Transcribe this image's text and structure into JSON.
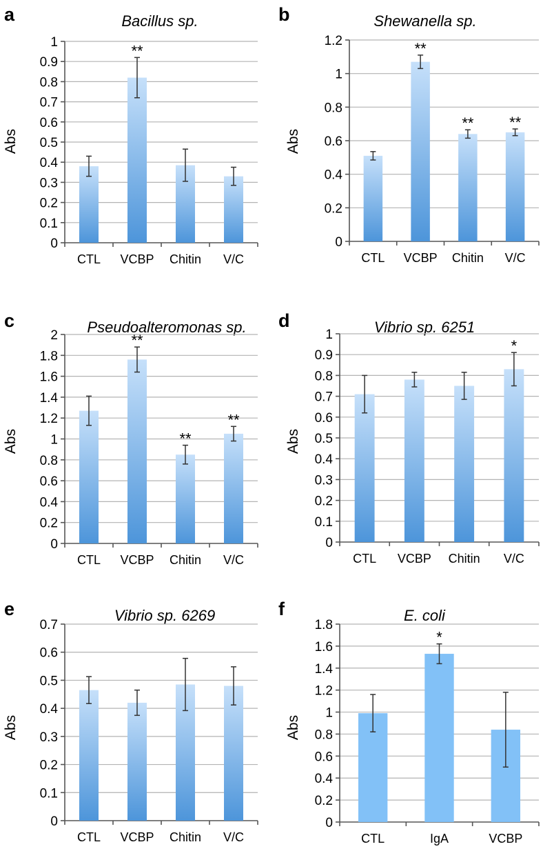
{
  "chart_data": [
    {
      "panel": "a",
      "type": "bar",
      "title": "Bacillus sp.",
      "ylabel": "Abs",
      "xlabel": "",
      "ylim": [
        0,
        1
      ],
      "ystep": 0.1,
      "yticks": [
        "0",
        "0.1",
        "0.2",
        "0.3",
        "0.4",
        "0.5",
        "0.6",
        "0.7",
        "0.8",
        "0.9",
        "1"
      ],
      "categories": [
        "CTL",
        "VCBP",
        "Chitin",
        "V/C"
      ],
      "values": [
        0.38,
        0.82,
        0.385,
        0.33
      ],
      "errors": [
        0.05,
        0.1,
        0.08,
        0.045
      ],
      "significance": [
        "",
        "**",
        "",
        ""
      ],
      "bar_style": "gradient"
    },
    {
      "panel": "b",
      "type": "bar",
      "title": "Shewanella sp.",
      "ylabel": "Abs",
      "xlabel": "",
      "ylim": [
        0,
        1.2
      ],
      "ystep": 0.2,
      "yticks": [
        "0",
        "0.2",
        "0.4",
        "0.6",
        "0.8",
        "1",
        "1.2"
      ],
      "categories": [
        "CTL",
        "VCBP",
        "Chitin",
        "V/C"
      ],
      "values": [
        0.51,
        1.07,
        0.64,
        0.65
      ],
      "errors": [
        0.025,
        0.04,
        0.025,
        0.02
      ],
      "significance": [
        "",
        "**",
        "**",
        "**"
      ],
      "bar_style": "gradient"
    },
    {
      "panel": "c",
      "type": "bar",
      "title": "Pseudoalteromonas sp.",
      "ylabel": "Abs",
      "xlabel": "",
      "ylim": [
        0,
        2
      ],
      "ystep": 0.2,
      "yticks": [
        "0",
        "0.2",
        "0.4",
        "0.6",
        "0.8",
        "1",
        "1.2",
        "1.4",
        "1.6",
        "1.8",
        "2"
      ],
      "categories": [
        "CTL",
        "VCBP",
        "Chitin",
        "V/C"
      ],
      "values": [
        1.27,
        1.76,
        0.85,
        1.05
      ],
      "errors": [
        0.14,
        0.12,
        0.09,
        0.07
      ],
      "significance": [
        "",
        "**",
        "**",
        "**"
      ],
      "bar_style": "gradient"
    },
    {
      "panel": "d",
      "type": "bar",
      "title": "Vibrio sp. 6251",
      "ylabel": "Abs",
      "xlabel": "",
      "ylim": [
        0,
        1
      ],
      "ystep": 0.1,
      "yticks": [
        "0",
        "0.1",
        "0.2",
        "0.3",
        "0.4",
        "0.5",
        "0.6",
        "0.7",
        "0.8",
        "0.9",
        "1"
      ],
      "categories": [
        "CTL",
        "VCBP",
        "Chitin",
        "V/C"
      ],
      "values": [
        0.71,
        0.78,
        0.75,
        0.83
      ],
      "errors": [
        0.09,
        0.035,
        0.065,
        0.08
      ],
      "significance": [
        "",
        "",
        "",
        "*"
      ],
      "bar_style": "gradient"
    },
    {
      "panel": "e",
      "type": "bar",
      "title": "Vibrio sp. 6269",
      "ylabel": "Abs",
      "xlabel": "",
      "ylim": [
        0,
        0.7
      ],
      "ystep": 0.1,
      "yticks": [
        "0",
        "0.1",
        "0.2",
        "0.3",
        "0.4",
        "0.5",
        "0.6",
        "0.7"
      ],
      "categories": [
        "CTL",
        "VCBP",
        "Chitin",
        "V/C"
      ],
      "values": [
        0.465,
        0.42,
        0.485,
        0.48
      ],
      "errors": [
        0.048,
        0.045,
        0.093,
        0.068
      ],
      "significance": [
        "",
        "",
        "",
        ""
      ],
      "bar_style": "gradient"
    },
    {
      "panel": "f",
      "type": "bar",
      "title": "E. coli",
      "ylabel": "Abs",
      "xlabel": "",
      "ylim": [
        0,
        1.8
      ],
      "ystep": 0.2,
      "yticks": [
        "0",
        "0.2",
        "0.4",
        "0.6",
        "0.8",
        "1",
        "1.2",
        "1.4",
        "1.6",
        "1.8"
      ],
      "categories": [
        "CTL",
        "IgA",
        "VCBP"
      ],
      "values": [
        0.99,
        1.53,
        0.84
      ],
      "errors": [
        0.17,
        0.09,
        0.34
      ],
      "significance": [
        "",
        "*",
        ""
      ],
      "bar_style": "flat"
    }
  ],
  "colors": {
    "bar_top": "#c6e0fa",
    "bar_bottom": "#4d95da",
    "bar_flat": "#82c1f7",
    "grid": "#b3b3b3",
    "axis": "#555555"
  }
}
